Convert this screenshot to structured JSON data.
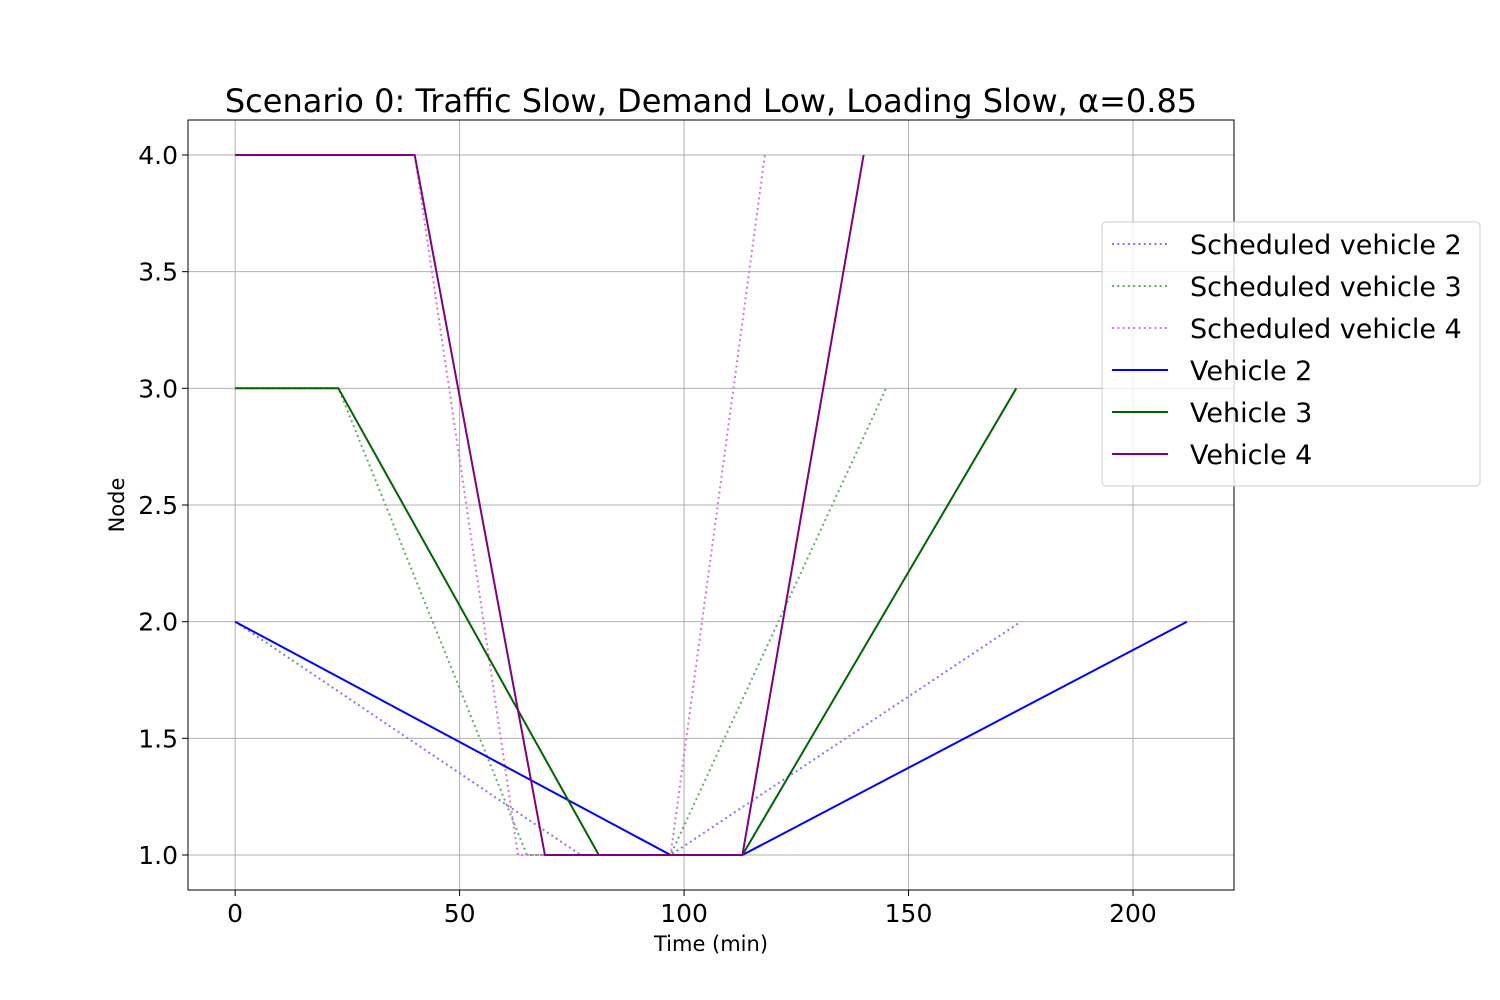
{
  "chart_data": {
    "type": "line",
    "title": "Scenario 0: Traffic Slow, Demand Low, Loading Slow, α=0.85",
    "xlabel": "Time (min)",
    "ylabel": "Node",
    "xlim": [
      -10.5,
      222.5
    ],
    "ylim": [
      0.85,
      4.15
    ],
    "xticks": [
      0,
      50,
      100,
      150,
      200
    ],
    "xtick_labels": [
      "0",
      "50",
      "100",
      "150",
      "200"
    ],
    "yticks": [
      1.0,
      1.5,
      2.0,
      2.5,
      3.0,
      3.5,
      4.0
    ],
    "ytick_labels": [
      "1.0",
      "1.5",
      "2.0",
      "2.5",
      "3.0",
      "3.5",
      "4.0"
    ],
    "grid": true,
    "legend_position": "right, outside plot",
    "series": [
      {
        "name": "Scheduled vehicle 2",
        "style": "dotted",
        "color": "#7b7bf0",
        "x": [
          0,
          77,
          97,
          175
        ],
        "y": [
          2,
          1,
          1,
          2
        ]
      },
      {
        "name": "Scheduled vehicle 3",
        "style": "dotted",
        "color": "#6aa86a",
        "x": [
          0,
          23,
          65,
          97,
          145
        ],
        "y": [
          3,
          3,
          1,
          1,
          3
        ]
      },
      {
        "name": "Scheduled vehicle 4",
        "style": "dotted",
        "color": "#d27ad2",
        "x": [
          0,
          40,
          63,
          97,
          118
        ],
        "y": [
          4,
          4,
          1,
          1,
          4
        ]
      },
      {
        "name": "Vehicle 2",
        "style": "solid",
        "color": "#0000ff",
        "x": [
          0,
          97,
          113,
          212
        ],
        "y": [
          2,
          1,
          1,
          2
        ]
      },
      {
        "name": "Vehicle 3",
        "style": "solid",
        "color": "#006400",
        "x": [
          0,
          23,
          81,
          113,
          174
        ],
        "y": [
          3,
          3,
          1,
          1,
          3
        ]
      },
      {
        "name": "Vehicle 4",
        "style": "solid",
        "color": "#800080",
        "x": [
          0,
          40,
          69,
          113,
          140
        ],
        "y": [
          4,
          4,
          1,
          1,
          4
        ]
      }
    ]
  }
}
